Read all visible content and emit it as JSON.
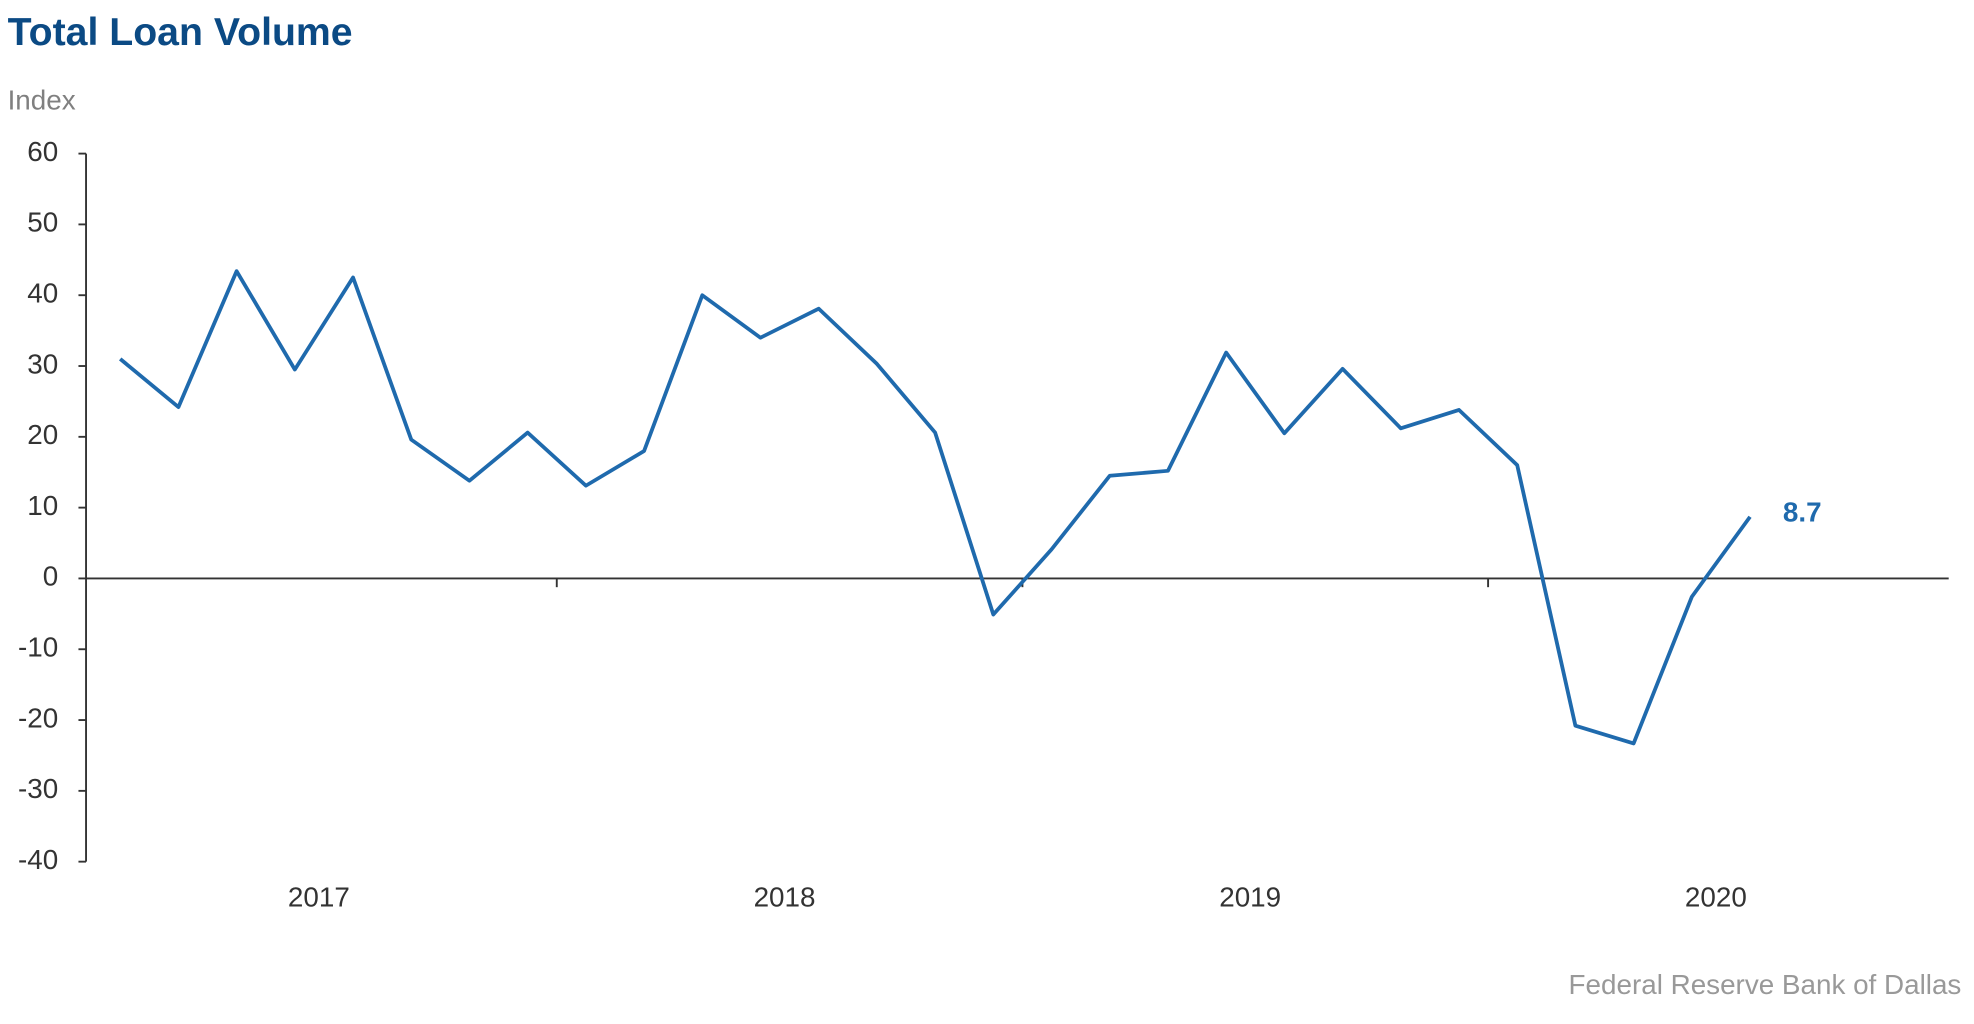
{
  "chart_data": {
    "type": "line",
    "title": "Total Loan Volume",
    "y_label": "Index",
    "source": "Federal Reserve Bank of Dallas",
    "year_labels": [
      "2017",
      "2018",
      "2019",
      "2020"
    ],
    "values": [
      31.0,
      24.2,
      43.4,
      29.5,
      42.5,
      19.6,
      13.8,
      20.6,
      13.1,
      18.0,
      40.0,
      34.0,
      38.1,
      30.3,
      20.6,
      -5.1,
      4.1,
      14.5,
      15.2,
      31.9,
      20.5,
      29.6,
      21.2,
      23.8,
      16.0,
      -20.8,
      -23.3,
      -2.6,
      8.7
    ],
    "color": "#1f6aad",
    "ylim": [
      -40,
      60
    ],
    "yticks": [
      -40,
      -30,
      -20,
      -10,
      0,
      10,
      20,
      30,
      40,
      50,
      60
    ]
  }
}
